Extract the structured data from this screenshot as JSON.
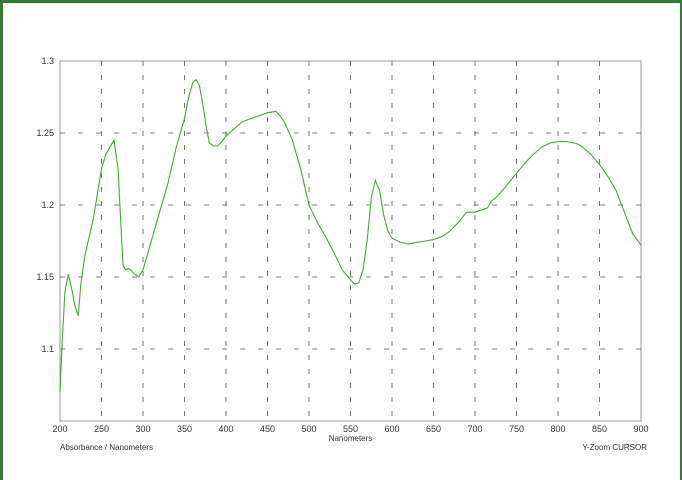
{
  "chart_data": {
    "type": "line",
    "title": "",
    "xlabel": "Nanometers",
    "ylabel": "",
    "xlim": [
      200,
      900
    ],
    "ylim": [
      1.05,
      1.3
    ],
    "x_ticks": [
      200,
      250,
      300,
      350,
      400,
      450,
      500,
      550,
      600,
      650,
      700,
      750,
      800,
      850,
      900
    ],
    "y_ticks": [
      1.1,
      1.15,
      1.2,
      1.25,
      1.3
    ],
    "x_tick_labels": [
      "200",
      "250",
      "300",
      "350",
      "400",
      "450",
      "500",
      "550",
      "600",
      "650",
      "700",
      "750",
      "800",
      "850",
      "900"
    ],
    "y_tick_labels": [
      "1.1",
      "1.15",
      "1.2",
      "1.25",
      "1.3"
    ],
    "grid": true,
    "line_color": "#44aa33",
    "series": [
      {
        "x": [
          200,
          203,
          206,
          210,
          214,
          218,
          222,
          225,
          230,
          240,
          250,
          255,
          260,
          265,
          270,
          273,
          276,
          279,
          282,
          285,
          290,
          295,
          300,
          310,
          320,
          330,
          340,
          350,
          355,
          360,
          364,
          368,
          372,
          376,
          380,
          385,
          390,
          395,
          400,
          410,
          420,
          430,
          440,
          450,
          460,
          465,
          470,
          480,
          490,
          500,
          510,
          520,
          530,
          540,
          550,
          555,
          560,
          565,
          570,
          575,
          580,
          585,
          590,
          595,
          600,
          610,
          620,
          630,
          640,
          650,
          660,
          670,
          680,
          690,
          700,
          710,
          715,
          720,
          725,
          730,
          740,
          750,
          760,
          770,
          780,
          790,
          800,
          810,
          820,
          825,
          830,
          840,
          850,
          860,
          870,
          880,
          890,
          900
        ],
        "y": [
          1.07,
          1.11,
          1.14,
          1.152,
          1.142,
          1.13,
          1.123,
          1.145,
          1.165,
          1.19,
          1.225,
          1.235,
          1.24,
          1.245,
          1.225,
          1.19,
          1.158,
          1.155,
          1.156,
          1.155,
          1.152,
          1.15,
          1.155,
          1.175,
          1.195,
          1.215,
          1.24,
          1.26,
          1.275,
          1.285,
          1.287,
          1.283,
          1.27,
          1.255,
          1.243,
          1.241,
          1.241,
          1.244,
          1.248,
          1.253,
          1.258,
          1.26,
          1.262,
          1.264,
          1.265,
          1.262,
          1.258,
          1.245,
          1.225,
          1.2,
          1.188,
          1.178,
          1.167,
          1.155,
          1.148,
          1.145,
          1.146,
          1.155,
          1.175,
          1.205,
          1.217,
          1.21,
          1.193,
          1.182,
          1.177,
          1.174,
          1.173,
          1.174,
          1.175,
          1.176,
          1.178,
          1.182,
          1.188,
          1.195,
          1.195,
          1.197,
          1.198,
          1.203,
          1.205,
          1.208,
          1.215,
          1.222,
          1.229,
          1.235,
          1.24,
          1.243,
          1.244,
          1.244,
          1.243,
          1.242,
          1.24,
          1.235,
          1.228,
          1.22,
          1.21,
          1.195,
          1.18,
          1.172
        ]
      }
    ],
    "footer_left": "Absorbance / Nanometers",
    "footer_right": "Y-Zoom CURSOR"
  }
}
